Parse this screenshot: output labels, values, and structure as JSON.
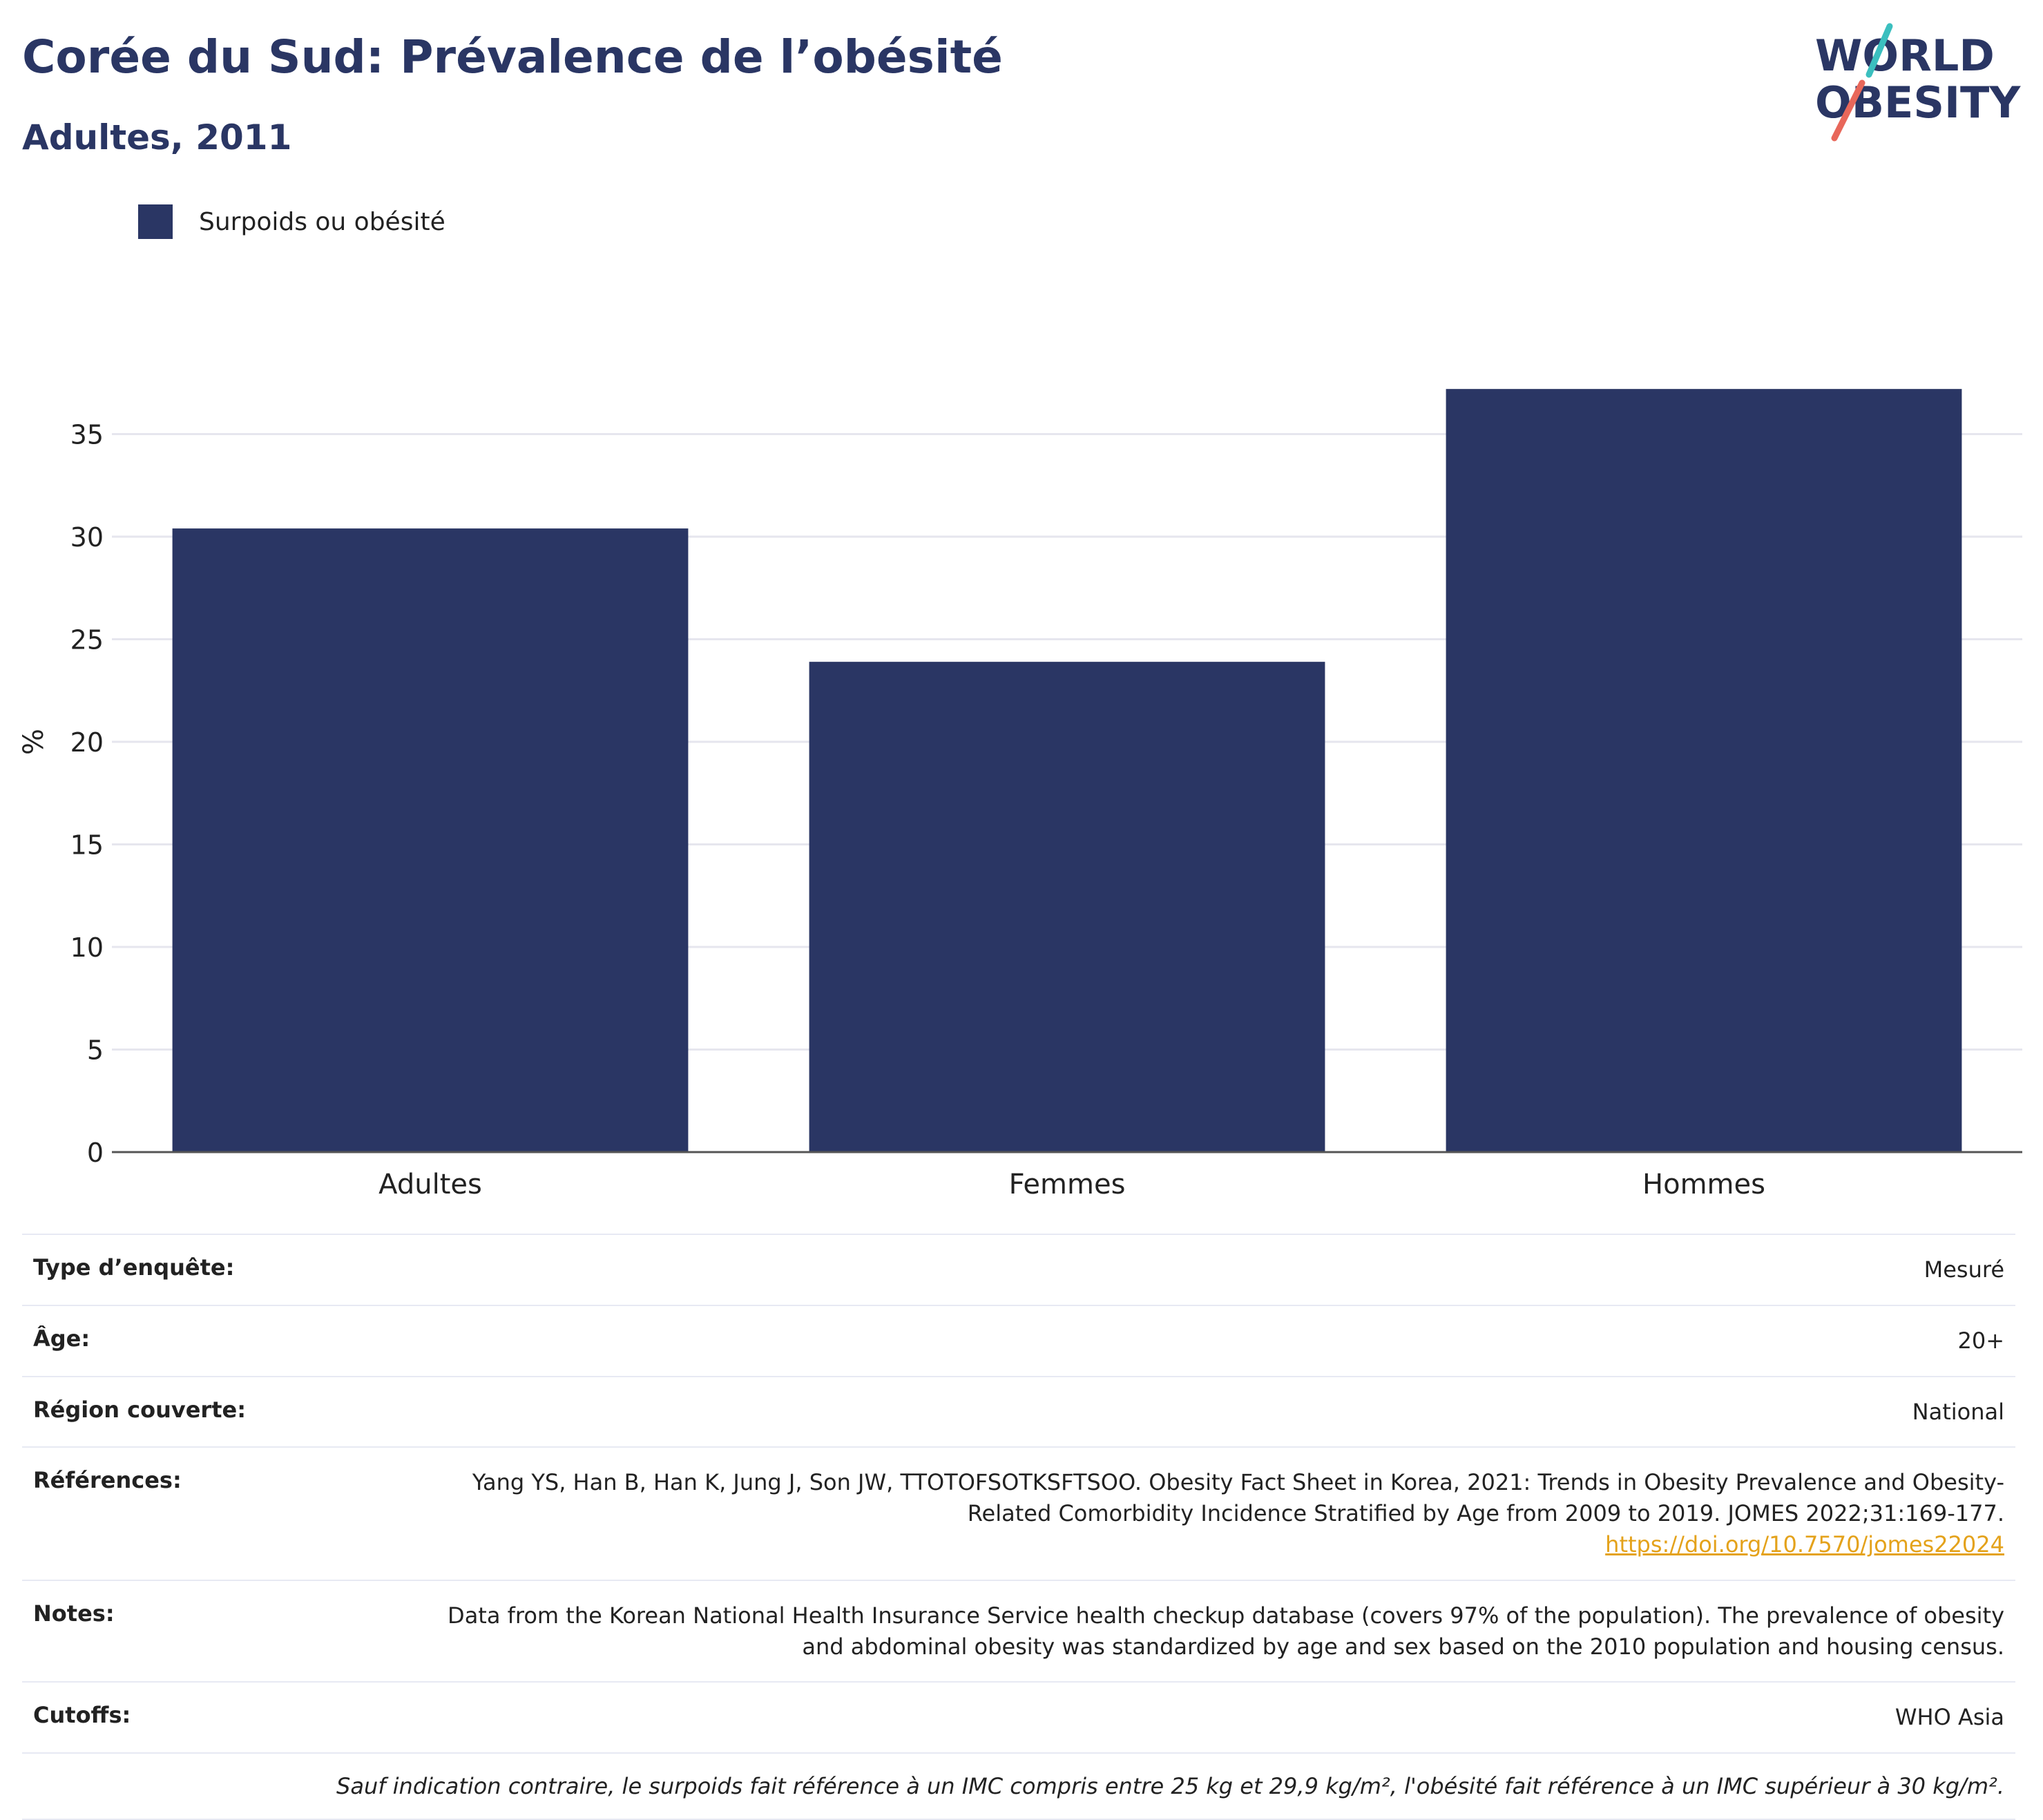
{
  "header": {
    "title": "Corée du Sud: Prévalence de l’obésité",
    "subtitle": "Adultes, 2011"
  },
  "logo": {
    "text_top": "WORLD",
    "text_bottom": "OBESITY",
    "accent_teal": "#3bbfbf",
    "accent_coral": "#e8675a"
  },
  "legend": {
    "label": "Surpoids ou obésité",
    "color": "#2a3664"
  },
  "chart_data": {
    "type": "bar",
    "categories": [
      "Adultes",
      "Femmes",
      "Hommes"
    ],
    "series": [
      {
        "name": "Surpoids ou obésité",
        "values": [
          30.4,
          23.9,
          37.2
        ],
        "color": "#2a3664"
      }
    ],
    "ylabel": "%",
    "xlabel": "",
    "ylim": [
      0,
      40
    ],
    "yticks": [
      0,
      5,
      10,
      15,
      20,
      25,
      30,
      35
    ],
    "grid": true
  },
  "info": {
    "rows": [
      {
        "label": "Type d’enquête:",
        "value": "Mesuré"
      },
      {
        "label": "Âge:",
        "value": "20+"
      },
      {
        "label": "Région couverte:",
        "value": "National"
      },
      {
        "label": "Références:",
        "value": "Yang YS, Han B, Han K, Jung J, Son JW, TTOTOFSOTKSFTSOO. Obesity Fact Sheet in Korea, 2021: Trends in Obesity Prevalence and Obesity-Related Comorbidity Incidence Stratified by Age from 2009 to 2019. JOMES 2022;31:169-177.",
        "link": "https://doi.org/10.7570/jomes22024"
      },
      {
        "label": "Notes:",
        "value": "Data from the Korean National Health Insurance Service health checkup database (covers 97% of the population). The prevalence of obesity and abdominal obesity was standardized by age and sex based on the 2010 population and housing census."
      },
      {
        "label": "Cutoffs:",
        "value": "WHO Asia"
      }
    ],
    "footnote": "Sauf indication contraire, le surpoids fait référence à un IMC compris entre 25 kg et 29,9 kg/m², l'obésité fait référence à un IMC supérieur à 30 kg/m²."
  }
}
